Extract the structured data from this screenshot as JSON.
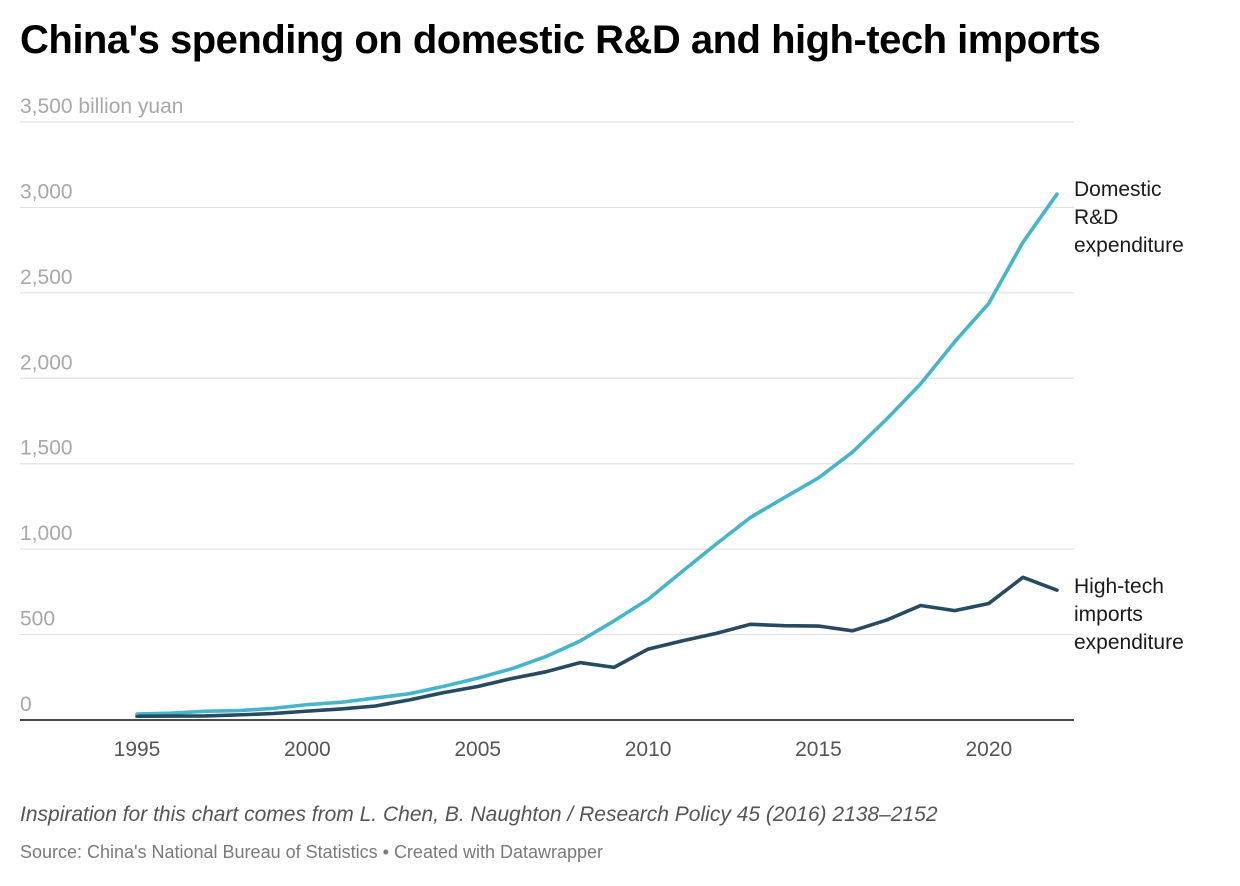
{
  "title": "China's spending on domestic R&D and high-tech imports",
  "notes": "Inspiration for this chart comes from L. Chen, B. Naughton / Research Policy 45 (2016) 2138–2152",
  "footer": {
    "source": "Source: China's National Bureau of Statistics",
    "separator": " • ",
    "credit": "Created with Datawrapper"
  },
  "colors": {
    "domestic": "#45b5cb",
    "imports": "#264a60",
    "grid": "#e2e2e2",
    "baseline": "#333333"
  },
  "chart_data": {
    "type": "line",
    "ylabel": "billion yuan",
    "ylim": [
      0,
      3500
    ],
    "yticks": [
      0,
      500,
      1000,
      1500,
      2000,
      2500,
      3000,
      3500
    ],
    "ytick_labels": [
      "0",
      "500",
      "1,000",
      "1,500",
      "2,000",
      "2,500",
      "3,000",
      "3,500 billion yuan"
    ],
    "xlim": [
      1995,
      2022
    ],
    "xticks": [
      1995,
      2000,
      2005,
      2010,
      2015,
      2020
    ],
    "xtick_labels": [
      "1995",
      "2000",
      "2005",
      "2010",
      "2015",
      "2020"
    ],
    "grid": true,
    "legend": "direct labels at line ends",
    "x": [
      1995,
      1996,
      1997,
      1998,
      1999,
      2000,
      2001,
      2002,
      2003,
      2004,
      2005,
      2006,
      2007,
      2008,
      2009,
      2010,
      2011,
      2012,
      2013,
      2014,
      2015,
      2016,
      2017,
      2018,
      2019,
      2020,
      2021,
      2022
    ],
    "series": [
      {
        "name": "Domestic R&D expenditure",
        "label_lines": [
          "Domestic",
          "R&D",
          "expenditure"
        ],
        "color_key": "domestic",
        "values": [
          35,
          40,
          51,
          55,
          68,
          90,
          104,
          129,
          154,
          197,
          245,
          300,
          371,
          462,
          580,
          706,
          869,
          1030,
          1185,
          1302,
          1417,
          1568,
          1761,
          1968,
          2214,
          2439,
          2796,
          3078
        ]
      },
      {
        "name": "High-tech imports expenditure",
        "label_lines": [
          "High-tech",
          "imports",
          "expenditure"
        ],
        "color_key": "imports",
        "values": [
          22,
          23,
          24,
          30,
          38,
          52,
          65,
          82,
          118,
          160,
          196,
          243,
          282,
          336,
          308,
          415,
          463,
          507,
          560,
          552,
          550,
          522,
          585,
          670,
          640,
          682,
          835,
          760
        ]
      }
    ]
  }
}
